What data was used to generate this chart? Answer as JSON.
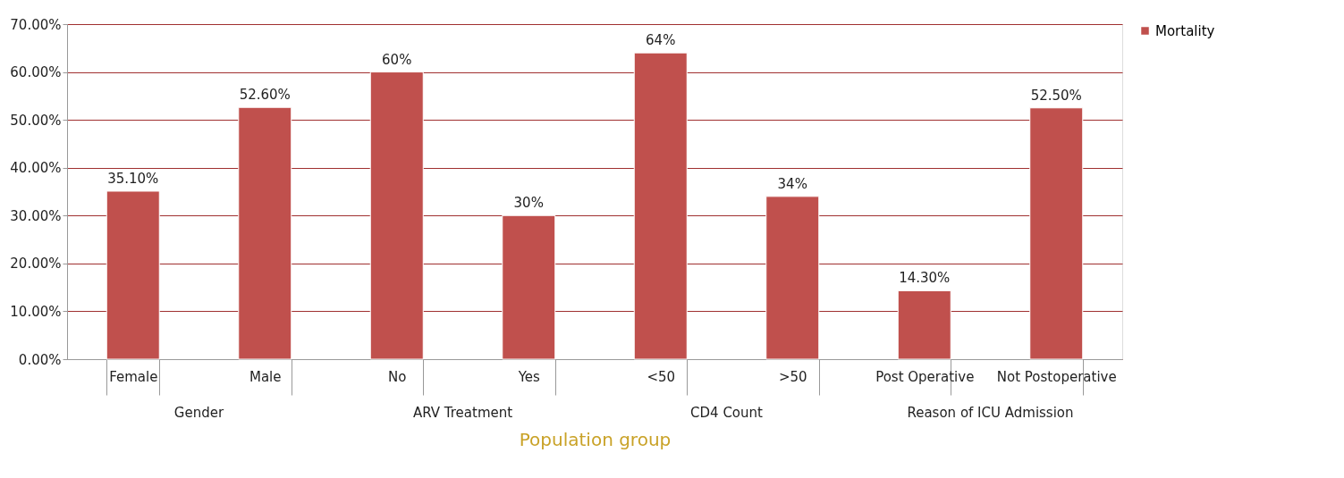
{
  "chart_data": {
    "type": "bar",
    "categories": [
      "Female",
      "Male",
      "No",
      "Yes",
      "<50",
      ">50",
      "Post Operative",
      "Not Postoperative"
    ],
    "series": [
      {
        "name": "Mortality",
        "color": "#c0504d",
        "values": [
          35.1,
          52.6,
          60,
          30,
          64,
          34,
          14.3,
          52.5
        ]
      }
    ],
    "value_labels": [
      "35.10%",
      "52.60%",
      "60%",
      "30%",
      "64%",
      "34%",
      "14.30%",
      "52.50%"
    ],
    "xlabel": "Population group",
    "annotations": [
      "Gender",
      "ARV Treatment",
      "CD4 Count",
      "Reason of ICU Admission"
    ],
    "ylim": [
      0,
      70
    ],
    "yticks": [
      {
        "value": 0,
        "label": "0.00%"
      },
      {
        "value": 10,
        "label": "10.00%"
      },
      {
        "value": 20,
        "label": "20.00%"
      },
      {
        "value": 30,
        "label": "30.00%"
      },
      {
        "value": 40,
        "label": "40.00%"
      },
      {
        "value": 50,
        "label": "50.00%"
      },
      {
        "value": 60,
        "label": "60.00%"
      },
      {
        "value": 70,
        "label": "70.00%"
      }
    ],
    "grid": "y",
    "legend": "right"
  }
}
